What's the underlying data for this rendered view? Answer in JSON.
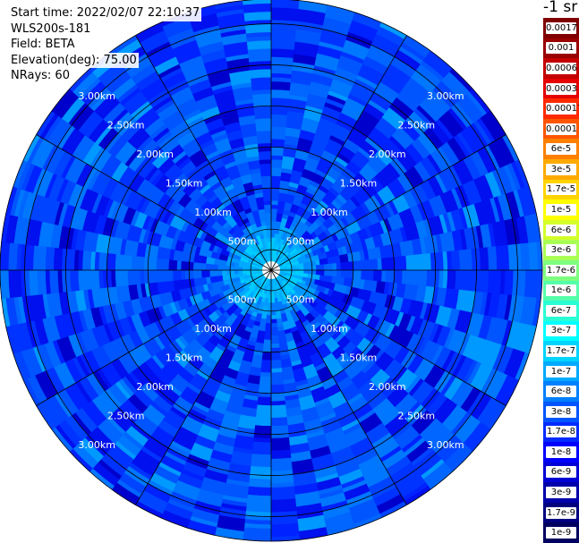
{
  "info": {
    "start_time": "Start time: 2022/02/07 22:10:37",
    "instrument": "WLS200s-181",
    "field": "Field: BETA",
    "elevation": "Elevation(deg): 75.00",
    "nrays": "NRays: 60"
  },
  "colorbar": {
    "unit_label": "-1 sr",
    "labels": [
      "0.0017",
      "0.001",
      "0.0006",
      "0.0003",
      "0.00017",
      "0.0001",
      "6e-5",
      "3e-5",
      "1.7e-5",
      "1e-5",
      "6e-6",
      "3e-6",
      "1.7e-6",
      "1e-6",
      "6e-7",
      "3e-7",
      "1.7e-7",
      "1e-7",
      "6e-8",
      "3e-8",
      "1.7e-8",
      "1e-8",
      "6e-9",
      "3e-9",
      "1.7e-9",
      "1e-9"
    ],
    "colors": [
      "#800000",
      "#9a0000",
      "#c40000",
      "#e60000",
      "#ff2a00",
      "#ff5500",
      "#ff7f00",
      "#ffaa00",
      "#ffd400",
      "#ffff00",
      "#d4ff2a",
      "#aaff55",
      "#7fff7f",
      "#55ffaa",
      "#2affd4",
      "#00ffff",
      "#00d4ff",
      "#00aaff",
      "#007fff",
      "#0055ff",
      "#002aff",
      "#0000ff",
      "#0000d4",
      "#0000aa",
      "#00007f",
      "#000060"
    ]
  },
  "chart_data": {
    "type": "ppi",
    "field": "BETA",
    "nrays": 60,
    "elevation_deg": 75.0,
    "range_rings_km": [
      0.5,
      1.0,
      1.5,
      2.0,
      2.5,
      3.0
    ],
    "ring_labels": [
      "500m",
      "1.00km",
      "1.50km",
      "2.00km",
      "2.50km",
      "3.00km"
    ],
    "azimuth_spokes_deg": [
      0,
      30,
      60,
      90,
      120,
      150,
      180,
      210,
      240,
      270,
      300,
      330
    ],
    "max_range_km": 3.3,
    "value_range": [
      "1e-9",
      "0.0017"
    ],
    "typical_value": "1e-8",
    "near_range_value": "6e-8"
  }
}
